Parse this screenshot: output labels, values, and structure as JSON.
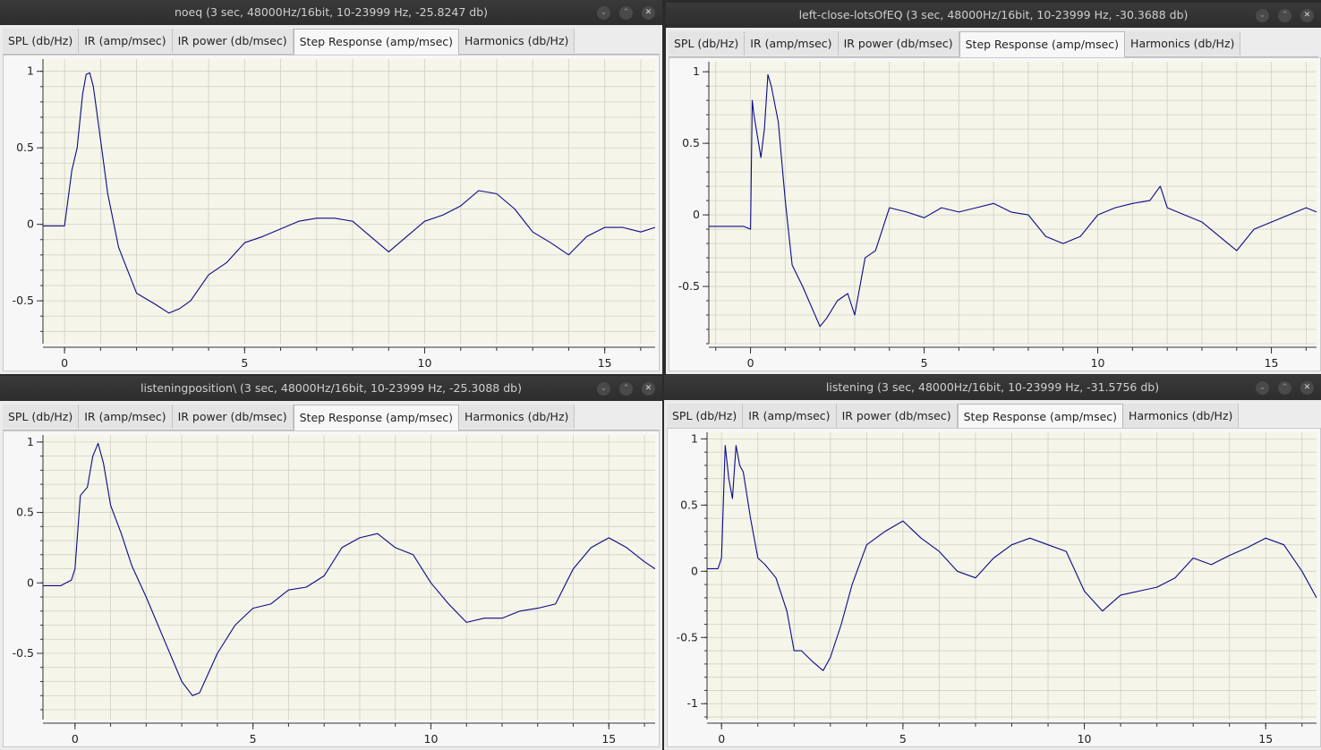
{
  "tabs": [
    "SPL (db/Hz)",
    "IR (amp/msec)",
    "IR power (db/msec)",
    "Step Response (amp/msec)",
    "Harmonics (db/Hz)"
  ],
  "active_tab": 3,
  "colors": {
    "trace": "#0b0b8a",
    "plot_bg": "#f5f5e9",
    "grid": "#d0d0c4"
  },
  "windows": [
    {
      "title": "noeq (3 sec, 48000Hz/16bit, 10-23999 Hz, -25.8247 db)",
      "chart_data": {
        "type": "line",
        "xlabel": "",
        "ylabel": "",
        "xlim": [
          -0.6,
          16.4
        ],
        "ylim": [
          -0.78,
          1.08
        ],
        "xticks": [
          "0",
          "5",
          "10",
          "15"
        ],
        "yticks": [
          "1",
          "0.5",
          "0",
          "-0.5"
        ],
        "grid": true,
        "series": [
          {
            "x": [
              -0.6,
              0,
              0.2,
              0.35,
              0.5,
              0.6,
              0.7,
              0.8,
              1,
              1.2,
              1.5,
              2,
              2.5,
              2.9,
              3.2,
              3.5,
              4,
              4.5,
              5,
              5.5,
              6,
              6.5,
              7,
              7.5,
              8,
              8.5,
              9,
              9.5,
              10,
              10.5,
              11,
              11.5,
              12,
              12.5,
              13,
              13.5,
              14,
              14.5,
              15,
              15.5,
              16,
              16.4
            ],
            "y": [
              -0.01,
              -0.01,
              0.35,
              0.5,
              0.85,
              0.98,
              0.99,
              0.9,
              0.55,
              0.2,
              -0.15,
              -0.45,
              -0.52,
              -0.58,
              -0.55,
              -0.5,
              -0.33,
              -0.25,
              -0.12,
              -0.08,
              -0.03,
              0.02,
              0.04,
              0.04,
              0.02,
              -0.08,
              -0.18,
              -0.08,
              0.02,
              0.06,
              0.12,
              0.22,
              0.2,
              0.1,
              -0.05,
              -0.12,
              -0.2,
              -0.08,
              -0.02,
              -0.02,
              -0.05,
              -0.02
            ]
          }
        ]
      }
    },
    {
      "title": "left-close-lotsOfEQ (3 sec, 48000Hz/16bit, 10-23999 Hz, -30.3688 db)",
      "chart_data": {
        "type": "line",
        "xlabel": "",
        "ylabel": "",
        "xlim": [
          -1.2,
          16.3
        ],
        "ylim": [
          -0.9,
          1.07
        ],
        "xticks": [
          "0",
          "5",
          "10",
          "15"
        ],
        "yticks": [
          "1",
          "0.5",
          "0",
          "-0.5"
        ],
        "grid": true,
        "series": [
          {
            "x": [
              -1.2,
              -0.2,
              0,
              0.05,
              0.1,
              0.2,
              0.3,
              0.4,
              0.5,
              0.6,
              0.8,
              1,
              1.2,
              1.5,
              2,
              2.2,
              2.5,
              2.8,
              3,
              3.3,
              3.6,
              4,
              4.5,
              5,
              5.5,
              6,
              6.5,
              7,
              7.5,
              8,
              8.5,
              9,
              9.5,
              10,
              10.5,
              11,
              11.5,
              11.8,
              12,
              12.5,
              13,
              13.5,
              14,
              14.5,
              15,
              15.5,
              16,
              16.3
            ],
            "y": [
              -0.08,
              -0.08,
              -0.1,
              0.8,
              0.7,
              0.55,
              0.4,
              0.6,
              0.98,
              0.9,
              0.65,
              0.1,
              -0.35,
              -0.5,
              -0.78,
              -0.72,
              -0.6,
              -0.55,
              -0.7,
              -0.3,
              -0.25,
              0.05,
              0.02,
              -0.02,
              0.05,
              0.02,
              0.05,
              0.08,
              0.02,
              0.0,
              -0.15,
              -0.2,
              -0.15,
              0.0,
              0.05,
              0.08,
              0.1,
              0.2,
              0.05,
              0.0,
              -0.05,
              -0.15,
              -0.25,
              -0.1,
              -0.05,
              0.0,
              0.05,
              0.02
            ]
          }
        ]
      }
    },
    {
      "title": "listeningposition\\ (3 sec, 48000Hz/16bit, 10-23999 Hz, -25.3088 db)",
      "chart_data": {
        "type": "line",
        "xlabel": "",
        "ylabel": "",
        "xlim": [
          -0.9,
          16.3
        ],
        "ylim": [
          -0.97,
          1.05
        ],
        "xticks": [
          "0",
          "5",
          "10",
          "15"
        ],
        "yticks": [
          "1",
          "0.5",
          "0",
          "-0.5"
        ],
        "grid": true,
        "series": [
          {
            "x": [
              -0.9,
              -0.4,
              -0.1,
              0,
              0.15,
              0.35,
              0.5,
              0.65,
              0.8,
              1,
              1.3,
              1.6,
              2,
              2.5,
              3,
              3.3,
              3.5,
              4,
              4.5,
              5,
              5.5,
              6,
              6.5,
              7,
              7.5,
              8,
              8.5,
              9,
              9.5,
              10,
              10.5,
              11,
              11.5,
              12,
              12.5,
              13,
              13.5,
              14,
              14.5,
              15,
              15.5,
              16,
              16.3
            ],
            "y": [
              -0.02,
              -0.02,
              0.02,
              0.1,
              0.62,
              0.68,
              0.9,
              0.99,
              0.85,
              0.55,
              0.35,
              0.12,
              -0.1,
              -0.4,
              -0.7,
              -0.8,
              -0.78,
              -0.5,
              -0.3,
              -0.18,
              -0.15,
              -0.05,
              -0.03,
              0.05,
              0.25,
              0.32,
              0.35,
              0.25,
              0.2,
              0.0,
              -0.15,
              -0.28,
              -0.25,
              -0.25,
              -0.2,
              -0.18,
              -0.15,
              0.1,
              0.25,
              0.32,
              0.25,
              0.15,
              0.1
            ]
          }
        ]
      }
    },
    {
      "title": "listening (3 sec, 48000Hz/16bit, 10-23999 Hz, -31.5756 db)",
      "chart_data": {
        "type": "line",
        "xlabel": "",
        "ylabel": "",
        "xlim": [
          -0.4,
          16.4
        ],
        "ylim": [
          -1.12,
          1.05
        ],
        "xticks": [
          "0",
          "5",
          "10",
          "15"
        ],
        "yticks": [
          "1",
          "0.5",
          "0",
          "-0.5",
          "-1"
        ],
        "grid": true,
        "series": [
          {
            "x": [
              -0.4,
              -0.1,
              0,
              0.1,
              0.2,
              0.3,
              0.4,
              0.5,
              0.6,
              0.8,
              1,
              1.2,
              1.5,
              1.8,
              2,
              2.2,
              2.5,
              2.8,
              3,
              3.3,
              3.6,
              4,
              4.5,
              5,
              5.5,
              6,
              6.5,
              7,
              7.5,
              8,
              8.5,
              9,
              9.5,
              10,
              10.5,
              11,
              11.5,
              12,
              12.5,
              13,
              13.5,
              14,
              14.5,
              15,
              15.5,
              16,
              16.4
            ],
            "y": [
              0.02,
              0.02,
              0.1,
              0.95,
              0.7,
              0.55,
              0.95,
              0.8,
              0.75,
              0.4,
              0.1,
              0.05,
              -0.05,
              -0.3,
              -0.6,
              -0.6,
              -0.68,
              -0.75,
              -0.65,
              -0.4,
              -0.1,
              0.2,
              0.3,
              0.38,
              0.25,
              0.15,
              0.0,
              -0.05,
              0.1,
              0.2,
              0.25,
              0.2,
              0.15,
              -0.15,
              -0.3,
              -0.18,
              -0.15,
              -0.12,
              -0.05,
              0.1,
              0.05,
              0.12,
              0.18,
              0.25,
              0.2,
              0.0,
              -0.2
            ]
          }
        ]
      }
    }
  ]
}
